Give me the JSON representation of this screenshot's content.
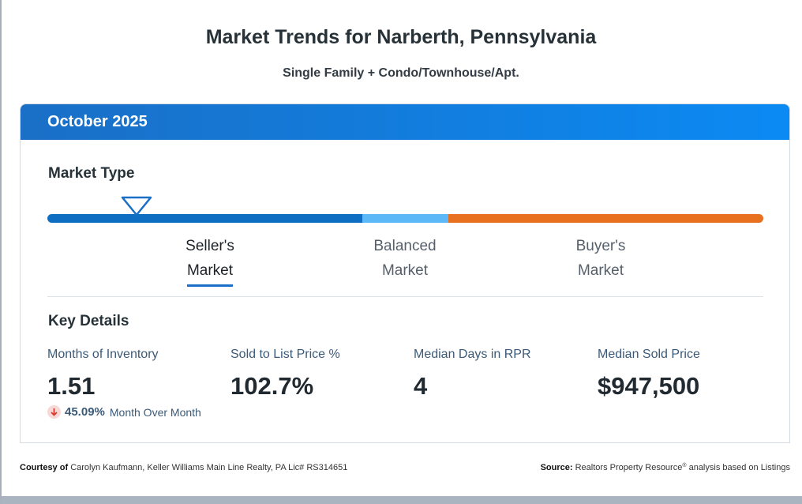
{
  "header": {
    "title": "Market Trends for Narberth, Pennsylvania",
    "subtitle": "Single Family + Condo/Townhouse/Apt."
  },
  "card": {
    "period": "October 2025",
    "market_type": {
      "heading": "Market Type",
      "indicator_position_fraction": 0.125,
      "segments": [
        {
          "name": "seller",
          "color": "#0e6fc2",
          "fraction": 0.44
        },
        {
          "name": "balanced",
          "color": "#5cb8f7",
          "fraction": 0.12
        },
        {
          "name": "buyer",
          "color": "#e8711f",
          "fraction": 0.44
        }
      ],
      "labels": [
        {
          "line1": "Seller's",
          "line2": "Market",
          "active": true
        },
        {
          "line1": "Balanced",
          "line2": "Market",
          "active": false
        },
        {
          "line1": "Buyer's",
          "line2": "Market",
          "active": false
        }
      ]
    },
    "key_details": {
      "heading": "Key Details",
      "stats": [
        {
          "label": "Months of Inventory",
          "value": "1.51"
        },
        {
          "label": "Sold to List Price %",
          "value": "102.7%"
        },
        {
          "label": "Median Days in RPR",
          "value": "4"
        },
        {
          "label": "Median Sold Price",
          "value": "$947,500"
        }
      ],
      "inventory_change": {
        "percent": "45.09%",
        "caption": "Month Over Month",
        "direction": "down",
        "icon": "arrow-down-icon"
      }
    }
  },
  "footer": {
    "courtesy_label": "Courtesy of",
    "courtesy_text": "Carolyn Kaufmann, Keller Williams Main Line Realty, PA Lic# RS314651",
    "source_label": "Source:",
    "source_text_a": "Realtors Property Resource",
    "source_reg": "®",
    "source_text_b": "analysis based on Listings"
  }
}
